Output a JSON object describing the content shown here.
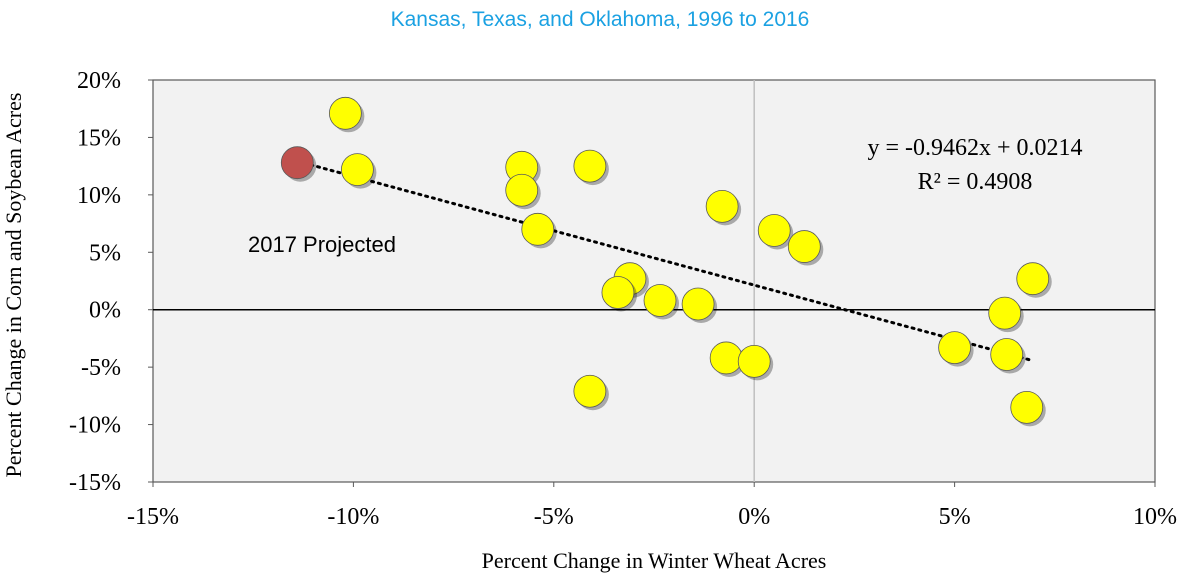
{
  "chart_data": {
    "type": "scatter",
    "subtitle": "Kansas, Texas, and Oklahoma, 1996 to 2016",
    "x_label": "Percent Change in Winter Wheat Acres",
    "y_label": "Percent Change in Corn and Soybean Acres",
    "xlim": [
      -15,
      10
    ],
    "ylim": [
      -15,
      20
    ],
    "xticks": [
      {
        "value": -15,
        "label": "-15%"
      },
      {
        "value": -10,
        "label": "-10%"
      },
      {
        "value": -5,
        "label": "-5%"
      },
      {
        "value": 0,
        "label": "0%"
      },
      {
        "value": 5,
        "label": "5%"
      },
      {
        "value": 10,
        "label": "10%"
      }
    ],
    "yticks": [
      {
        "value": -15,
        "label": "-15%"
      },
      {
        "value": -10,
        "label": "-10%"
      },
      {
        "value": -5,
        "label": "-5%"
      },
      {
        "value": 0,
        "label": "0%"
      },
      {
        "value": 5,
        "label": "5%"
      },
      {
        "value": 10,
        "label": "10%"
      },
      {
        "value": 15,
        "label": "15%"
      },
      {
        "value": 20,
        "label": "20%"
      }
    ],
    "series": [
      {
        "color": "#ffff00",
        "x": [
          -10.2,
          -9.9,
          -5.8,
          -5.8,
          -4.1,
          -5.4,
          -0.8,
          -3.1,
          -3.4,
          -2.35,
          -1.4,
          -4.1,
          -0.7,
          0.0,
          0.5,
          1.25,
          5.0,
          6.3,
          6.25,
          6.95,
          6.8
        ],
        "values": [
          17.1,
          12.2,
          12.4,
          10.4,
          12.5,
          7.0,
          9.0,
          2.7,
          1.5,
          0.8,
          0.5,
          -7.1,
          -4.2,
          -4.5,
          6.9,
          5.5,
          -3.3,
          -3.9,
          -0.3,
          2.7,
          -8.5
        ]
      },
      {
        "color": "#c0504d",
        "x": [
          -11.4
        ],
        "values": [
          12.8
        ]
      }
    ],
    "trendline": {
      "x": [
        -11.4,
        6.9
      ],
      "values": [
        12.93,
        -4.39
      ]
    },
    "annotations": [
      "2017 Projected",
      "y = -0.9462x + 0.0214",
      "R² = 0.4908"
    ]
  }
}
